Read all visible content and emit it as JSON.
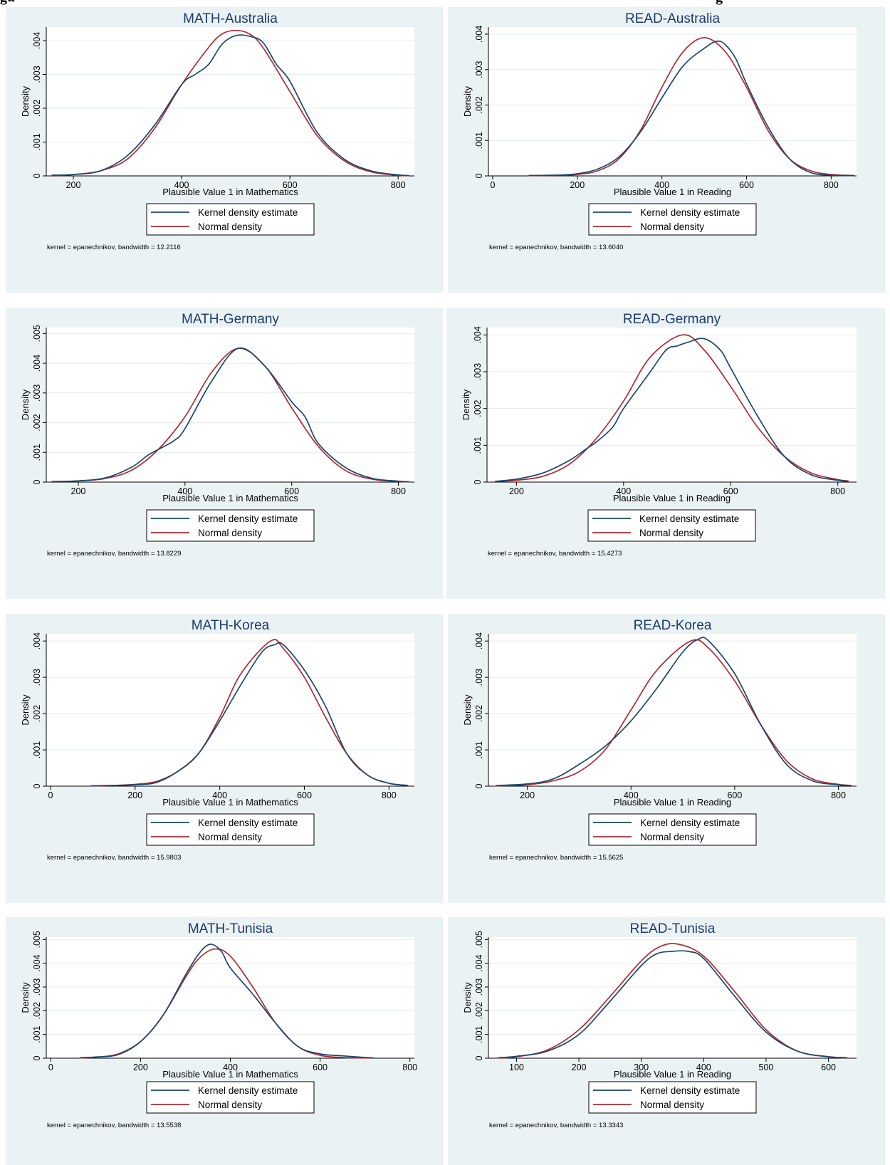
{
  "caption": {
    "left": "gu",
    "right": "g"
  },
  "colors": {
    "panel_bg": "#eaf2f3",
    "plot_bg": "#ffffff",
    "title": "#1d3b6e",
    "kernel_line": "#1a476f",
    "normal_line": "#b02a30",
    "grid": "#e6ecee"
  },
  "legend": {
    "kernel": "Kernel density estimate",
    "normal": "Normal density"
  },
  "chart_data": [
    {
      "type": "line",
      "title": "MATH-Australia",
      "xlabel": "Plausible Value 1 in Mathematics",
      "ylabel": "Density",
      "xlim": [
        150,
        830
      ],
      "ylim": [
        0,
        0.0044
      ],
      "xticks": [
        200,
        400,
        600,
        800
      ],
      "xtick_labels": [
        "200",
        "400",
        "600",
        "800"
      ],
      "yticks": [
        0,
        0.001,
        0.002,
        0.003,
        0.004
      ],
      "ytick_labels": [
        "0",
        ".001",
        ".002",
        ".003",
        ".004"
      ],
      "grid": true,
      "legend_position": "bottom",
      "note": "kernel = epanechnikov, bandwidth = 12.2116",
      "series": [
        {
          "name": "Kernel density estimate",
          "x": [
            160,
            200,
            250,
            300,
            350,
            400,
            425,
            450,
            475,
            500,
            525,
            550,
            575,
            600,
            650,
            700,
            750,
            800,
            820
          ],
          "y": [
            2e-05,
            4e-05,
            0.00015,
            0.0006,
            0.0015,
            0.0027,
            0.003,
            0.0033,
            0.0039,
            0.00415,
            0.00413,
            0.00395,
            0.0033,
            0.0028,
            0.0013,
            0.0005,
            0.00015,
            3e-05,
            1e-05
          ]
        },
        {
          "name": "Normal density",
          "x": [
            160,
            200,
            250,
            300,
            350,
            400,
            450,
            475,
            500,
            525,
            550,
            600,
            650,
            700,
            750,
            800,
            820
          ],
          "y": [
            2e-05,
            4e-05,
            0.00015,
            0.0005,
            0.0014,
            0.0027,
            0.0038,
            0.0042,
            0.0043,
            0.0042,
            0.0038,
            0.0025,
            0.0012,
            0.00045,
            0.00012,
            2e-05,
            1e-05
          ]
        }
      ]
    },
    {
      "type": "line",
      "title": "READ-Australia",
      "xlabel": "Plausible Value 1 in Reading",
      "ylabel": "Density",
      "xlim": [
        -10,
        860
      ],
      "ylim": [
        0,
        0.0042
      ],
      "xticks": [
        0,
        200,
        400,
        600,
        800
      ],
      "xtick_labels": [
        "0",
        "200",
        "400",
        "600",
        "800"
      ],
      "yticks": [
        0,
        0.001,
        0.002,
        0.003,
        0.004
      ],
      "ytick_labels": [
        "0",
        ".001",
        ".002",
        ".003",
        ".004"
      ],
      "grid": true,
      "legend_position": "bottom",
      "note": "kernel = epanechnikov, bandwidth = 13.6040",
      "series": [
        {
          "name": "Kernel density estimate",
          "x": [
            85,
            150,
            200,
            250,
            300,
            350,
            400,
            450,
            500,
            530,
            550,
            575,
            600,
            650,
            700,
            750,
            800,
            855
          ],
          "y": [
            1e-05,
            2e-05,
            6e-05,
            0.0002,
            0.00055,
            0.00125,
            0.0022,
            0.0031,
            0.0036,
            0.0038,
            0.0037,
            0.0033,
            0.0026,
            0.0014,
            0.0005,
            0.0001,
            2e-05,
            1e-05
          ]
        },
        {
          "name": "Normal density",
          "x": [
            85,
            150,
            200,
            250,
            300,
            350,
            400,
            450,
            500,
            550,
            600,
            650,
            700,
            750,
            800,
            855
          ],
          "y": [
            1e-05,
            2e-05,
            4e-05,
            0.00015,
            0.0005,
            0.0013,
            0.0025,
            0.0035,
            0.0039,
            0.0035,
            0.0025,
            0.0013,
            0.0005,
            0.00015,
            4e-05,
            1e-05
          ]
        }
      ]
    },
    {
      "type": "line",
      "title": "MATH-Germany",
      "xlabel": "Plausible Value 1 in Mathematics",
      "ylabel": "Density",
      "xlim": [
        140,
        830
      ],
      "ylim": [
        0,
        0.0052
      ],
      "xticks": [
        200,
        400,
        600,
        800
      ],
      "xtick_labels": [
        "200",
        "400",
        "600",
        "800"
      ],
      "yticks": [
        0,
        0.001,
        0.002,
        0.003,
        0.004,
        0.005
      ],
      "ytick_labels": [
        "0",
        ".001",
        ".002",
        ".003",
        ".004",
        ".005"
      ],
      "grid": true,
      "legend_position": "bottom",
      "note": "kernel = epanechnikov, bandwidth = 13.8229",
      "series": [
        {
          "name": "Kernel density estimate",
          "x": [
            150,
            200,
            250,
            300,
            330,
            350,
            380,
            400,
            450,
            500,
            550,
            600,
            625,
            650,
            700,
            750,
            800,
            820
          ],
          "y": [
            2e-05,
            4e-05,
            0.00014,
            0.0005,
            0.0009,
            0.0011,
            0.0014,
            0.0018,
            0.0034,
            0.0045,
            0.0039,
            0.0027,
            0.0022,
            0.0013,
            0.0005,
            0.00013,
            3e-05,
            1e-05
          ]
        },
        {
          "name": "Normal density",
          "x": [
            150,
            200,
            250,
            300,
            350,
            400,
            450,
            500,
            550,
            600,
            650,
            700,
            750,
            800,
            820
          ],
          "y": [
            2e-05,
            4e-05,
            0.00012,
            0.0004,
            0.0011,
            0.0022,
            0.0037,
            0.0045,
            0.0039,
            0.0025,
            0.0012,
            0.0004,
            0.0001,
            2e-05,
            1e-05
          ]
        }
      ]
    },
    {
      "type": "line",
      "title": "READ-Germany",
      "xlabel": "Plausible Value 1 in Reading",
      "ylabel": "Density",
      "xlim": [
        145,
        835
      ],
      "ylim": [
        0,
        0.0042
      ],
      "xticks": [
        200,
        400,
        600,
        800
      ],
      "xtick_labels": [
        "200",
        "400",
        "600",
        "800"
      ],
      "yticks": [
        0,
        0.001,
        0.002,
        0.003,
        0.004
      ],
      "ytick_labels": [
        "0",
        ".001",
        ".002",
        ".003",
        ".004"
      ],
      "grid": true,
      "legend_position": "bottom",
      "note": "kernel = epanechnikov, bandwidth = 15.4273",
      "series": [
        {
          "name": "Kernel density estimate",
          "x": [
            160,
            200,
            250,
            300,
            330,
            350,
            380,
            400,
            450,
            480,
            500,
            520,
            550,
            580,
            600,
            650,
            700,
            750,
            800,
            820
          ],
          "y": [
            2e-05,
            8e-05,
            0.00025,
            0.0006,
            0.0009,
            0.0011,
            0.0015,
            0.002,
            0.003,
            0.0036,
            0.0037,
            0.0038,
            0.0039,
            0.0036,
            0.0031,
            0.0018,
            0.0007,
            0.0002,
            5e-05,
            2e-05
          ]
        },
        {
          "name": "Normal density",
          "x": [
            160,
            200,
            250,
            300,
            350,
            400,
            450,
            510,
            550,
            600,
            650,
            700,
            750,
            800,
            820
          ],
          "y": [
            2e-05,
            5e-05,
            0.00016,
            0.0005,
            0.0012,
            0.0022,
            0.0034,
            0.004,
            0.0036,
            0.0026,
            0.0015,
            0.0007,
            0.00025,
            7e-05,
            3e-05
          ]
        }
      ]
    },
    {
      "type": "line",
      "title": "MATH-Korea",
      "xlabel": "Plausible Value 1 in Mathematics",
      "ylabel": "Density",
      "xlim": [
        -10,
        860
      ],
      "ylim": [
        0,
        0.0042
      ],
      "xticks": [
        0,
        200,
        400,
        600,
        800
      ],
      "xtick_labels": [
        "0",
        "200",
        "400",
        "600",
        "800"
      ],
      "yticks": [
        0,
        0.001,
        0.002,
        0.003,
        0.004
      ],
      "ytick_labels": [
        "0",
        ".001",
        ".002",
        ".003",
        ".004"
      ],
      "grid": true,
      "legend_position": "bottom",
      "note": "kernel = epanechnikov, bandwidth = 15.9803",
      "series": [
        {
          "name": "Kernel density estimate",
          "x": [
            95,
            150,
            200,
            250,
            300,
            350,
            400,
            450,
            500,
            530,
            550,
            600,
            650,
            700,
            750,
            800,
            845
          ],
          "y": [
            1e-05,
            2e-05,
            4e-05,
            0.0001,
            0.0004,
            0.0009,
            0.0018,
            0.0028,
            0.0037,
            0.0039,
            0.0039,
            0.0032,
            0.0022,
            0.0009,
            0.0003,
            8e-05,
            2e-05
          ]
        },
        {
          "name": "Normal density",
          "x": [
            95,
            150,
            200,
            250,
            300,
            350,
            400,
            450,
            520,
            550,
            600,
            650,
            700,
            750,
            800,
            845
          ],
          "y": [
            1e-05,
            2e-05,
            5e-05,
            0.00013,
            0.0004,
            0.0009,
            0.0019,
            0.0031,
            0.004,
            0.0038,
            0.003,
            0.0019,
            0.0009,
            0.0003,
            8e-05,
            2e-05
          ]
        }
      ]
    },
    {
      "type": "line",
      "title": "READ-Korea",
      "xlabel": "Plausible Value 1 in Reading",
      "ylabel": "Density",
      "xlim": [
        125,
        835
      ],
      "ylim": [
        0,
        0.0042
      ],
      "xticks": [
        200,
        400,
        600,
        800
      ],
      "xtick_labels": [
        "200",
        "400",
        "600",
        "800"
      ],
      "yticks": [
        0,
        0.001,
        0.002,
        0.003,
        0.004
      ],
      "ytick_labels": [
        "0",
        ".001",
        ".002",
        ".003",
        ".004"
      ],
      "grid": true,
      "legend_position": "bottom",
      "note": "kernel = epanechnikov, bandwidth = 15.5625",
      "series": [
        {
          "name": "Kernel density estimate",
          "x": [
            140,
            200,
            250,
            300,
            350,
            400,
            450,
            500,
            530,
            550,
            600,
            650,
            700,
            750,
            800,
            825
          ],
          "y": [
            2e-05,
            6e-05,
            0.0002,
            0.0006,
            0.0011,
            0.0018,
            0.0027,
            0.0037,
            0.00405,
            0.004,
            0.0031,
            0.0017,
            0.0006,
            0.00015,
            4e-05,
            2e-05
          ]
        },
        {
          "name": "Normal density",
          "x": [
            140,
            200,
            250,
            300,
            350,
            400,
            450,
            515,
            550,
            600,
            650,
            700,
            750,
            800,
            825
          ],
          "y": [
            1e-05,
            4e-05,
            0.00015,
            0.0004,
            0.001,
            0.0021,
            0.0032,
            0.004,
            0.0038,
            0.0029,
            0.0017,
            0.0007,
            0.0002,
            5e-05,
            2e-05
          ]
        }
      ]
    },
    {
      "type": "line",
      "title": "MATH-Tunisia",
      "xlabel": "Plausible Value 1 in Mathematics",
      "ylabel": "Density",
      "xlim": [
        -10,
        810
      ],
      "ylim": [
        0,
        0.0051
      ],
      "xticks": [
        0,
        200,
        400,
        600,
        800
      ],
      "xtick_labels": [
        "0",
        "200",
        "400",
        "600",
        "800"
      ],
      "yticks": [
        0,
        0.001,
        0.002,
        0.003,
        0.004,
        0.005
      ],
      "ytick_labels": [
        "0",
        ".001",
        ".002",
        ".003",
        ".004",
        ".005"
      ],
      "grid": true,
      "legend_position": "bottom",
      "note": "kernel = epanechnikov, bandwidth = 13.5538",
      "series": [
        {
          "name": "Kernel density estimate",
          "x": [
            65,
            100,
            150,
            200,
            250,
            300,
            330,
            355,
            380,
            400,
            450,
            500,
            550,
            600,
            650,
            700,
            720
          ],
          "y": [
            2e-05,
            5e-05,
            0.00015,
            0.0007,
            0.0018,
            0.0035,
            0.0044,
            0.0048,
            0.0045,
            0.0038,
            0.0027,
            0.0015,
            0.0005,
            0.00018,
            0.0001,
            3e-05,
            1e-05
          ]
        },
        {
          "name": "Normal density",
          "x": [
            65,
            100,
            150,
            200,
            250,
            300,
            330,
            365,
            400,
            450,
            500,
            550,
            600,
            650,
            700,
            720
          ],
          "y": [
            1e-05,
            4e-05,
            0.00018,
            0.0007,
            0.0018,
            0.0034,
            0.0042,
            0.0046,
            0.0043,
            0.003,
            0.0015,
            0.0005,
            0.00012,
            3e-05,
            1e-05,
            1e-05
          ]
        }
      ]
    },
    {
      "type": "line",
      "title": "READ-Tunisia",
      "xlabel": "Plausible Value 1 in Reading",
      "ylabel": "Density",
      "xlim": [
        55,
        645
      ],
      "ylim": [
        0,
        0.0051
      ],
      "xticks": [
        100,
        200,
        300,
        400,
        500,
        600
      ],
      "xtick_labels": [
        "100",
        "200",
        "300",
        "400",
        "500",
        "600"
      ],
      "yticks": [
        0,
        0.001,
        0.002,
        0.003,
        0.004,
        0.005
      ],
      "ytick_labels": [
        "0",
        ".001",
        ".002",
        ".003",
        ".004",
        ".005"
      ],
      "grid": true,
      "legend_position": "bottom",
      "note": "kernel = epanechnikov, bandwidth = 13.3343",
      "series": [
        {
          "name": "Kernel density estimate",
          "x": [
            70,
            100,
            150,
            200,
            250,
            300,
            325,
            350,
            375,
            400,
            450,
            500,
            550,
            600,
            630
          ],
          "y": [
            2e-05,
            8e-05,
            0.0003,
            0.001,
            0.0024,
            0.0039,
            0.0044,
            0.0045,
            0.0045,
            0.0042,
            0.0026,
            0.0011,
            0.0003,
            6e-05,
            2e-05
          ]
        },
        {
          "name": "Normal density",
          "x": [
            70,
            100,
            150,
            200,
            250,
            300,
            330,
            360,
            400,
            450,
            500,
            550,
            600,
            630
          ],
          "y": [
            1e-05,
            6e-05,
            0.00035,
            0.0012,
            0.0026,
            0.0041,
            0.0047,
            0.0048,
            0.0043,
            0.0028,
            0.0012,
            0.0003,
            6e-05,
            2e-05
          ]
        }
      ]
    }
  ]
}
